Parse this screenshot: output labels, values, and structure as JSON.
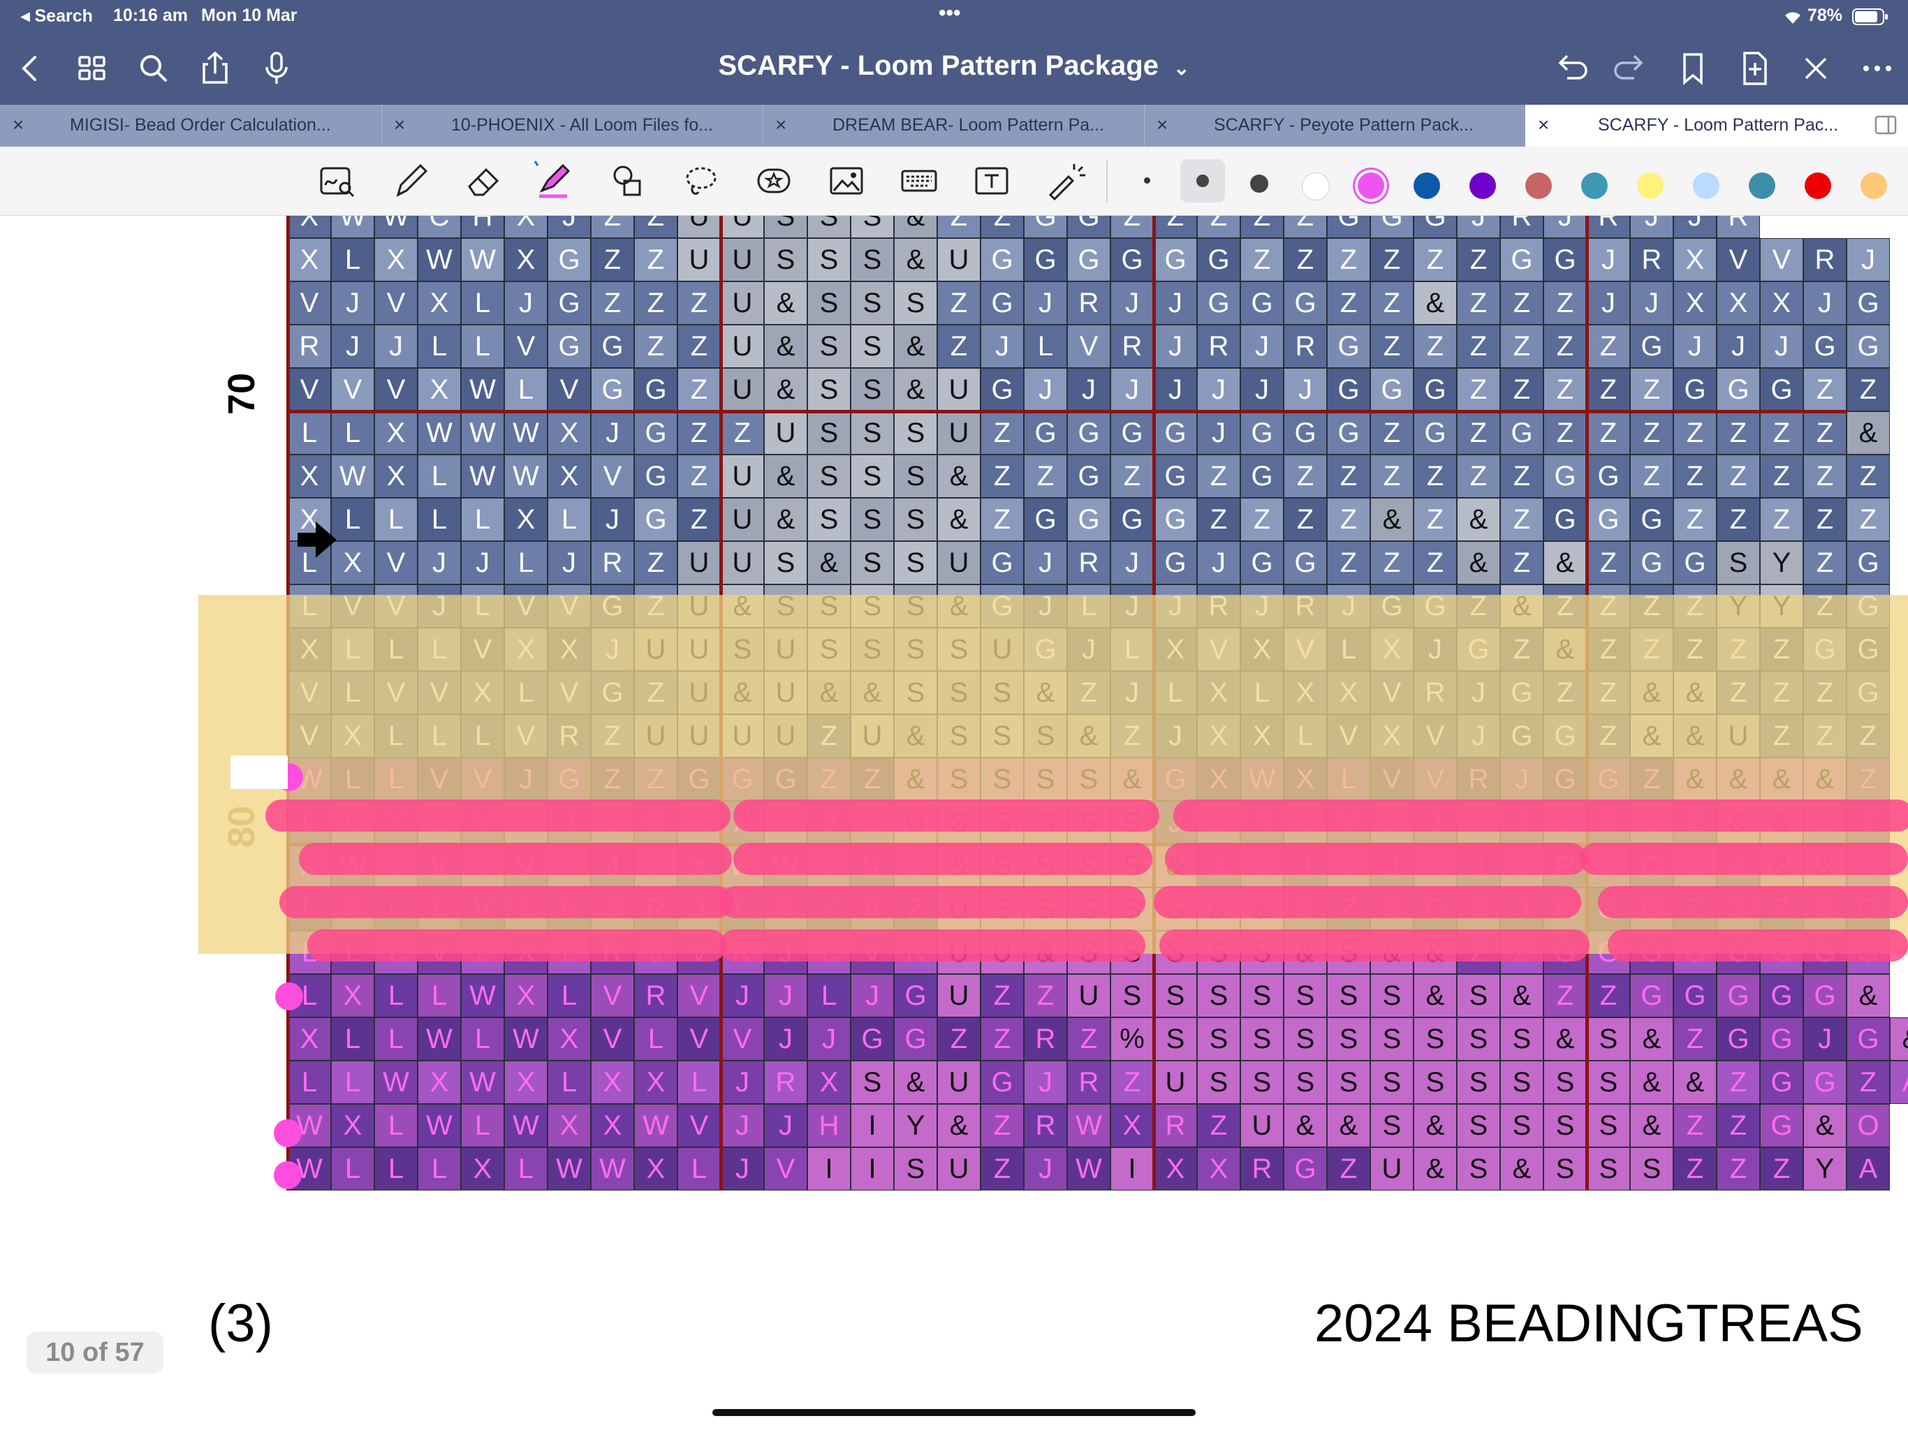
{
  "status_bar": {
    "back_label": "◂ Search",
    "time": "10:16 am",
    "date": "Mon 10 Mar",
    "dots": "•••",
    "battery": "78%"
  },
  "nav": {
    "title": "SCARFY - Loom Pattern Package",
    "title_chevron": "⌄"
  },
  "tabs": [
    {
      "label": "MIGISI- Bead Order Calculation...",
      "close": "×"
    },
    {
      "label": "10-PHOENIX - All Loom Files fo...",
      "close": "×"
    },
    {
      "label": "DREAM BEAR- Loom Pattern Pa...",
      "close": "×"
    },
    {
      "label": "SCARFY -  Peyote Pattern Pack...",
      "close": "×"
    },
    {
      "label": "SCARFY - Loom Pattern Pac...",
      "close": "×",
      "active": true
    }
  ],
  "toolbar": {
    "tools": [
      "handwriting-search-icon",
      "pen-icon",
      "eraser-icon",
      "highlighter-icon",
      "shapes-icon",
      "lasso-icon",
      "sticker-icon",
      "image-icon",
      "keyboard-icon",
      "text-box-icon",
      "laser-pointer-icon"
    ],
    "colors": [
      "#ffffff",
      "#ee55ee",
      "#0a5aa8",
      "#7000cc",
      "#c86464",
      "#3f98b4",
      "#fff27a",
      "#b7dcff",
      "#3e8eaa",
      "#ee0000",
      "#ffc878"
    ]
  },
  "pattern": {
    "rows": [
      "XWWCHXJZZUUSSS&ZZGGZZZZZGGGJRJRJJR",
      "XLXWWXGZZUUSSS&UGGGGGGZZZZZZGGJRXVVRJ",
      "VJVXLJGZZZU&SSSZGJRJJGGGZZ&ZZZJJXXXJG",
      "RJJLLVGGZZU&SS&ZJLVRJRJRGZZZZZZGJJJGG",
      "VVVXWLVGGZU&SS&UGJJJJJJJGGGZZZZZGGGZZ",
      "LLXWWWXJGZZUSSSUZGGGGJGGGZGZGZZZZZZZ&",
      "XWXLWWXVGZU&SSS&ZZGZGZGZZZZZZGGZZZZZZ",
      "XLLLLXLJGZU&SSS&ZGGGGZZZZ&Z&ZGGGZZZZZ",
      "LXVJJLJRZUUS&SSUGJRJGJGGZZZ&Z&ZGGSYZG",
      "LVVJLVVGZU&SSSS&GJLJJRJRJGGZ&ZZZZYYZG",
      "XLLLVXXJUUSUSSSSUGJLXVXVLXJGZ&ZZZZZGG",
      "VLVVXLVGZU&U&&SSS&ZJLXLXXVRJGZZ&&ZZZG",
      "VXLLLVRZUUUUZU&SSS&ZJXXLVXVJGGZ&&UZZZ",
      "WLLVVJGZZGGGZZ&SSSS&GXWXLVVRJGGZ&&&&Z",
      "LLXLVVJGGRXXJGUSSSSSJJXLVJJVJJGGZ&&ZZ",
      "XWLVVVRJRXWWLRZ&SSSS&ZJJJJRJJRJGGZ&&A",
      "LXLLVLVJRJLXXVZUSSSSS&&ZZZGZJRGGZZZZG",
      "LLLVLXLRJVRJLVRUU&SSSSS&S&&ZZGGGGGGGG",
      "LXLLWXLVRVJJLJGUZZUSSSSSSS&S&ZZGGGGG&",
      "XLLWLWXVLVVJJGGZZRZ%SSSSSSSSS&S&ZGGJG&",
      "LLWXWXLXXLJRXS&UGJRZUSSSSSSSSSS&&ZGGZA",
      "WXLWLWXXWVJJHIY&ZRWXRZU&&S&SSSS&ZZG&O",
      "WLLLXLWWXLJVIISUZJWIXXRGZU&S&SSSZZZYA"
    ],
    "row_labels": [
      {
        "text": "70",
        "row": 4
      },
      {
        "text": "80",
        "row": 14
      }
    ],
    "arrow_icon": "right-arrow-icon"
  },
  "footer": {
    "page_counter": "10 of 57",
    "left_text": "(3)",
    "right_text": "2024  BEADINGTREAS"
  }
}
